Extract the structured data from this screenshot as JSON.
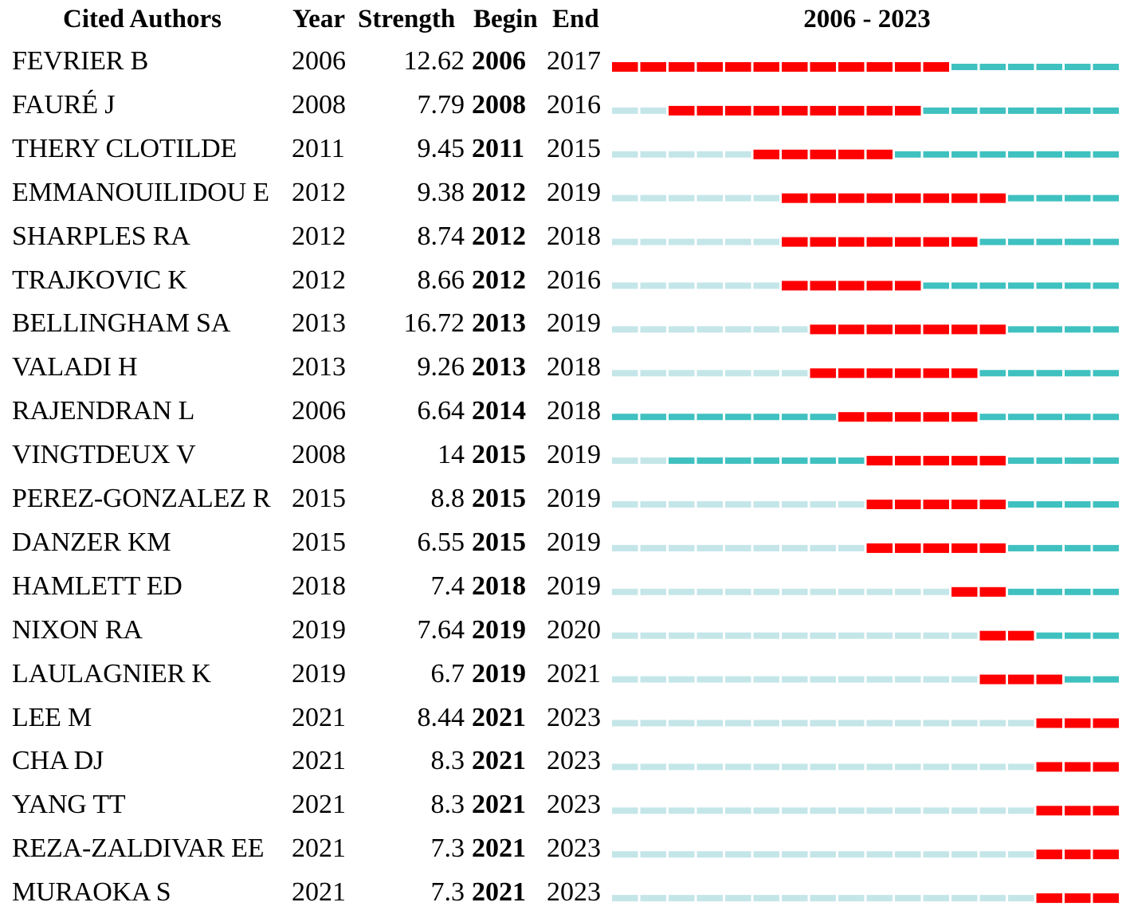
{
  "chart_data": {
    "type": "table",
    "headers": {
      "authors": "Cited Authors",
      "year": "Year",
      "strength": "Strength",
      "begin": "Begin",
      "end": "End",
      "range": "2006 - 2023"
    },
    "timeline": {
      "start": 2006,
      "end": 2023
    },
    "colors": {
      "burst": "#ff0000",
      "active": "#3fc1c0",
      "inactive": "#c4e6e9"
    },
    "rows": [
      {
        "author": "FEVRIER B",
        "year": 2006,
        "strength": 12.62,
        "begin": 2006,
        "end": 2017
      },
      {
        "author": "FAURÉ J",
        "year": 2008,
        "strength": 7.79,
        "begin": 2008,
        "end": 2016
      },
      {
        "author": "THERY CLOTILDE",
        "year": 2011,
        "strength": 9.45,
        "begin": 2011,
        "end": 2015
      },
      {
        "author": "EMMANOUILIDOU E",
        "year": 2012,
        "strength": 9.38,
        "begin": 2012,
        "end": 2019
      },
      {
        "author": "SHARPLES RA",
        "year": 2012,
        "strength": 8.74,
        "begin": 2012,
        "end": 2018
      },
      {
        "author": "TRAJKOVIC K",
        "year": 2012,
        "strength": 8.66,
        "begin": 2012,
        "end": 2016
      },
      {
        "author": "BELLINGHAM SA",
        "year": 2013,
        "strength": 16.72,
        "begin": 2013,
        "end": 2019
      },
      {
        "author": "VALADI H",
        "year": 2013,
        "strength": 9.26,
        "begin": 2013,
        "end": 2018
      },
      {
        "author": "RAJENDRAN L",
        "year": 2006,
        "strength": 6.64,
        "begin": 2014,
        "end": 2018
      },
      {
        "author": "VINGTDEUX V",
        "year": 2008,
        "strength": 14,
        "begin": 2015,
        "end": 2019
      },
      {
        "author": "PEREZ-GONZALEZ R",
        "year": 2015,
        "strength": 8.8,
        "begin": 2015,
        "end": 2019
      },
      {
        "author": "DANZER KM",
        "year": 2015,
        "strength": 6.55,
        "begin": 2015,
        "end": 2019
      },
      {
        "author": "HAMLETT ED",
        "year": 2018,
        "strength": 7.4,
        "begin": 2018,
        "end": 2019
      },
      {
        "author": "NIXON RA",
        "year": 2019,
        "strength": 7.64,
        "begin": 2019,
        "end": 2020
      },
      {
        "author": "LAULAGNIER K",
        "year": 2019,
        "strength": 6.7,
        "begin": 2019,
        "end": 2021
      },
      {
        "author": "LEE M",
        "year": 2021,
        "strength": 8.44,
        "begin": 2021,
        "end": 2023
      },
      {
        "author": "CHA DJ",
        "year": 2021,
        "strength": 8.3,
        "begin": 2021,
        "end": 2023
      },
      {
        "author": "YANG TT",
        "year": 2021,
        "strength": 8.3,
        "begin": 2021,
        "end": 2023
      },
      {
        "author": "REZA-ZALDIVAR EE",
        "year": 2021,
        "strength": 7.3,
        "begin": 2021,
        "end": 2023
      },
      {
        "author": "MURAOKA S",
        "year": 2021,
        "strength": 7.3,
        "begin": 2021,
        "end": 2023
      }
    ]
  }
}
